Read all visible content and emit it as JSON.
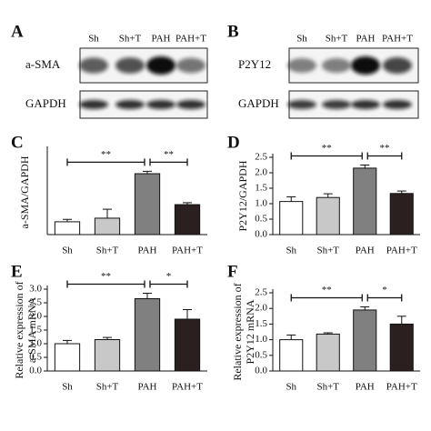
{
  "blots": [
    {
      "panel": "A",
      "lanes": [
        "Sh",
        "Sh+T",
        "PAH",
        "PAH+T"
      ],
      "rows": [
        "a-SMA",
        "GAPDH"
      ]
    },
    {
      "panel": "B",
      "lanes": [
        "Sh",
        "Sh+T",
        "PAH",
        "PAH+T"
      ],
      "rows": [
        "P2Y12",
        "GAPDH"
      ]
    }
  ],
  "chart_data": [
    {
      "type": "bar",
      "panel": "C",
      "ylabel": "a-SMA/GAPDH",
      "categories": [
        "Sh",
        "Sh+T",
        "PAH",
        "PAH+T"
      ],
      "values": [
        0.53,
        0.68,
        2.52,
        1.24
      ],
      "errors": [
        0.1,
        0.37,
        0.1,
        0.08
      ],
      "colors": [
        "#ffffff",
        "#c8c8c8",
        "#808080",
        "#2b2020"
      ],
      "ylim": [
        0,
        3.5
      ],
      "significance": [
        {
          "between": [
            0,
            2
          ],
          "label": "**"
        },
        {
          "between": [
            2,
            3
          ],
          "label": "**"
        }
      ]
    },
    {
      "type": "bar",
      "panel": "D",
      "ylabel": "P2Y12/GAPDH",
      "categories": [
        "Sh",
        "Sh+T",
        "PAH",
        "PAH+T"
      ],
      "values": [
        1.07,
        1.2,
        2.15,
        1.33
      ],
      "errors": [
        0.15,
        0.12,
        0.1,
        0.08
      ],
      "colors": [
        "#ffffff",
        "#c8c8c8",
        "#808080",
        "#2b2020"
      ],
      "ylim": [
        0,
        2.5
      ],
      "yticks": [
        {
          "value": 0,
          "label": "0.0"
        },
        0.5,
        {
          "value": 1,
          "label": "1.0"
        },
        1.5,
        {
          "value": 2,
          "label": "2.0"
        },
        2.5
      ],
      "significance": [
        {
          "between": [
            0,
            2
          ],
          "label": "**"
        },
        {
          "between": [
            2,
            3
          ],
          "label": "**"
        }
      ]
    },
    {
      "type": "bar",
      "panel": "E",
      "ylabel": [
        "Relative expression of",
        "a-SMA mRNA"
      ],
      "categories": [
        "Sh",
        "Sh+T",
        "PAH",
        "PAH+T"
      ],
      "values": [
        1.0,
        1.15,
        2.65,
        1.9
      ],
      "errors": [
        0.12,
        0.08,
        0.2,
        0.35
      ],
      "colors": [
        "#ffffff",
        "#c8c8c8",
        "#808080",
        "#2b2020"
      ],
      "ylim": [
        0,
        3
      ],
      "yticks": [
        {
          "value": 0,
          "label": "0.0"
        },
        0.5,
        {
          "value": 1,
          "label": "1.0"
        },
        1.5,
        {
          "value": 2,
          "label": "2.0"
        },
        2.5,
        {
          "value": 3,
          "label": "3.0"
        }
      ],
      "significance": [
        {
          "between": [
            0,
            2
          ],
          "label": "**"
        },
        {
          "between": [
            2,
            3
          ],
          "label": "*"
        }
      ]
    },
    {
      "type": "bar",
      "panel": "F",
      "ylabel": [
        "Relative expression of",
        "P2Y12 mRNA"
      ],
      "categories": [
        "Sh",
        "Sh+T",
        "PAH",
        "PAH+T"
      ],
      "values": [
        1.0,
        1.18,
        1.95,
        1.5
      ],
      "errors": [
        0.15,
        0.04,
        0.1,
        0.25
      ],
      "colors": [
        "#ffffff",
        "#c8c8c8",
        "#808080",
        "#2b2020"
      ],
      "ylim": [
        0,
        2.5
      ],
      "yticks": [
        {
          "value": 0,
          "label": "0.0"
        },
        0.5,
        {
          "value": 1,
          "label": "1.0"
        },
        1.5,
        {
          "value": 2,
          "label": "2.0"
        },
        2.5
      ],
      "significance": [
        {
          "between": [
            0,
            2
          ],
          "label": "**"
        },
        {
          "between": [
            2,
            3
          ],
          "label": "*"
        }
      ]
    }
  ]
}
